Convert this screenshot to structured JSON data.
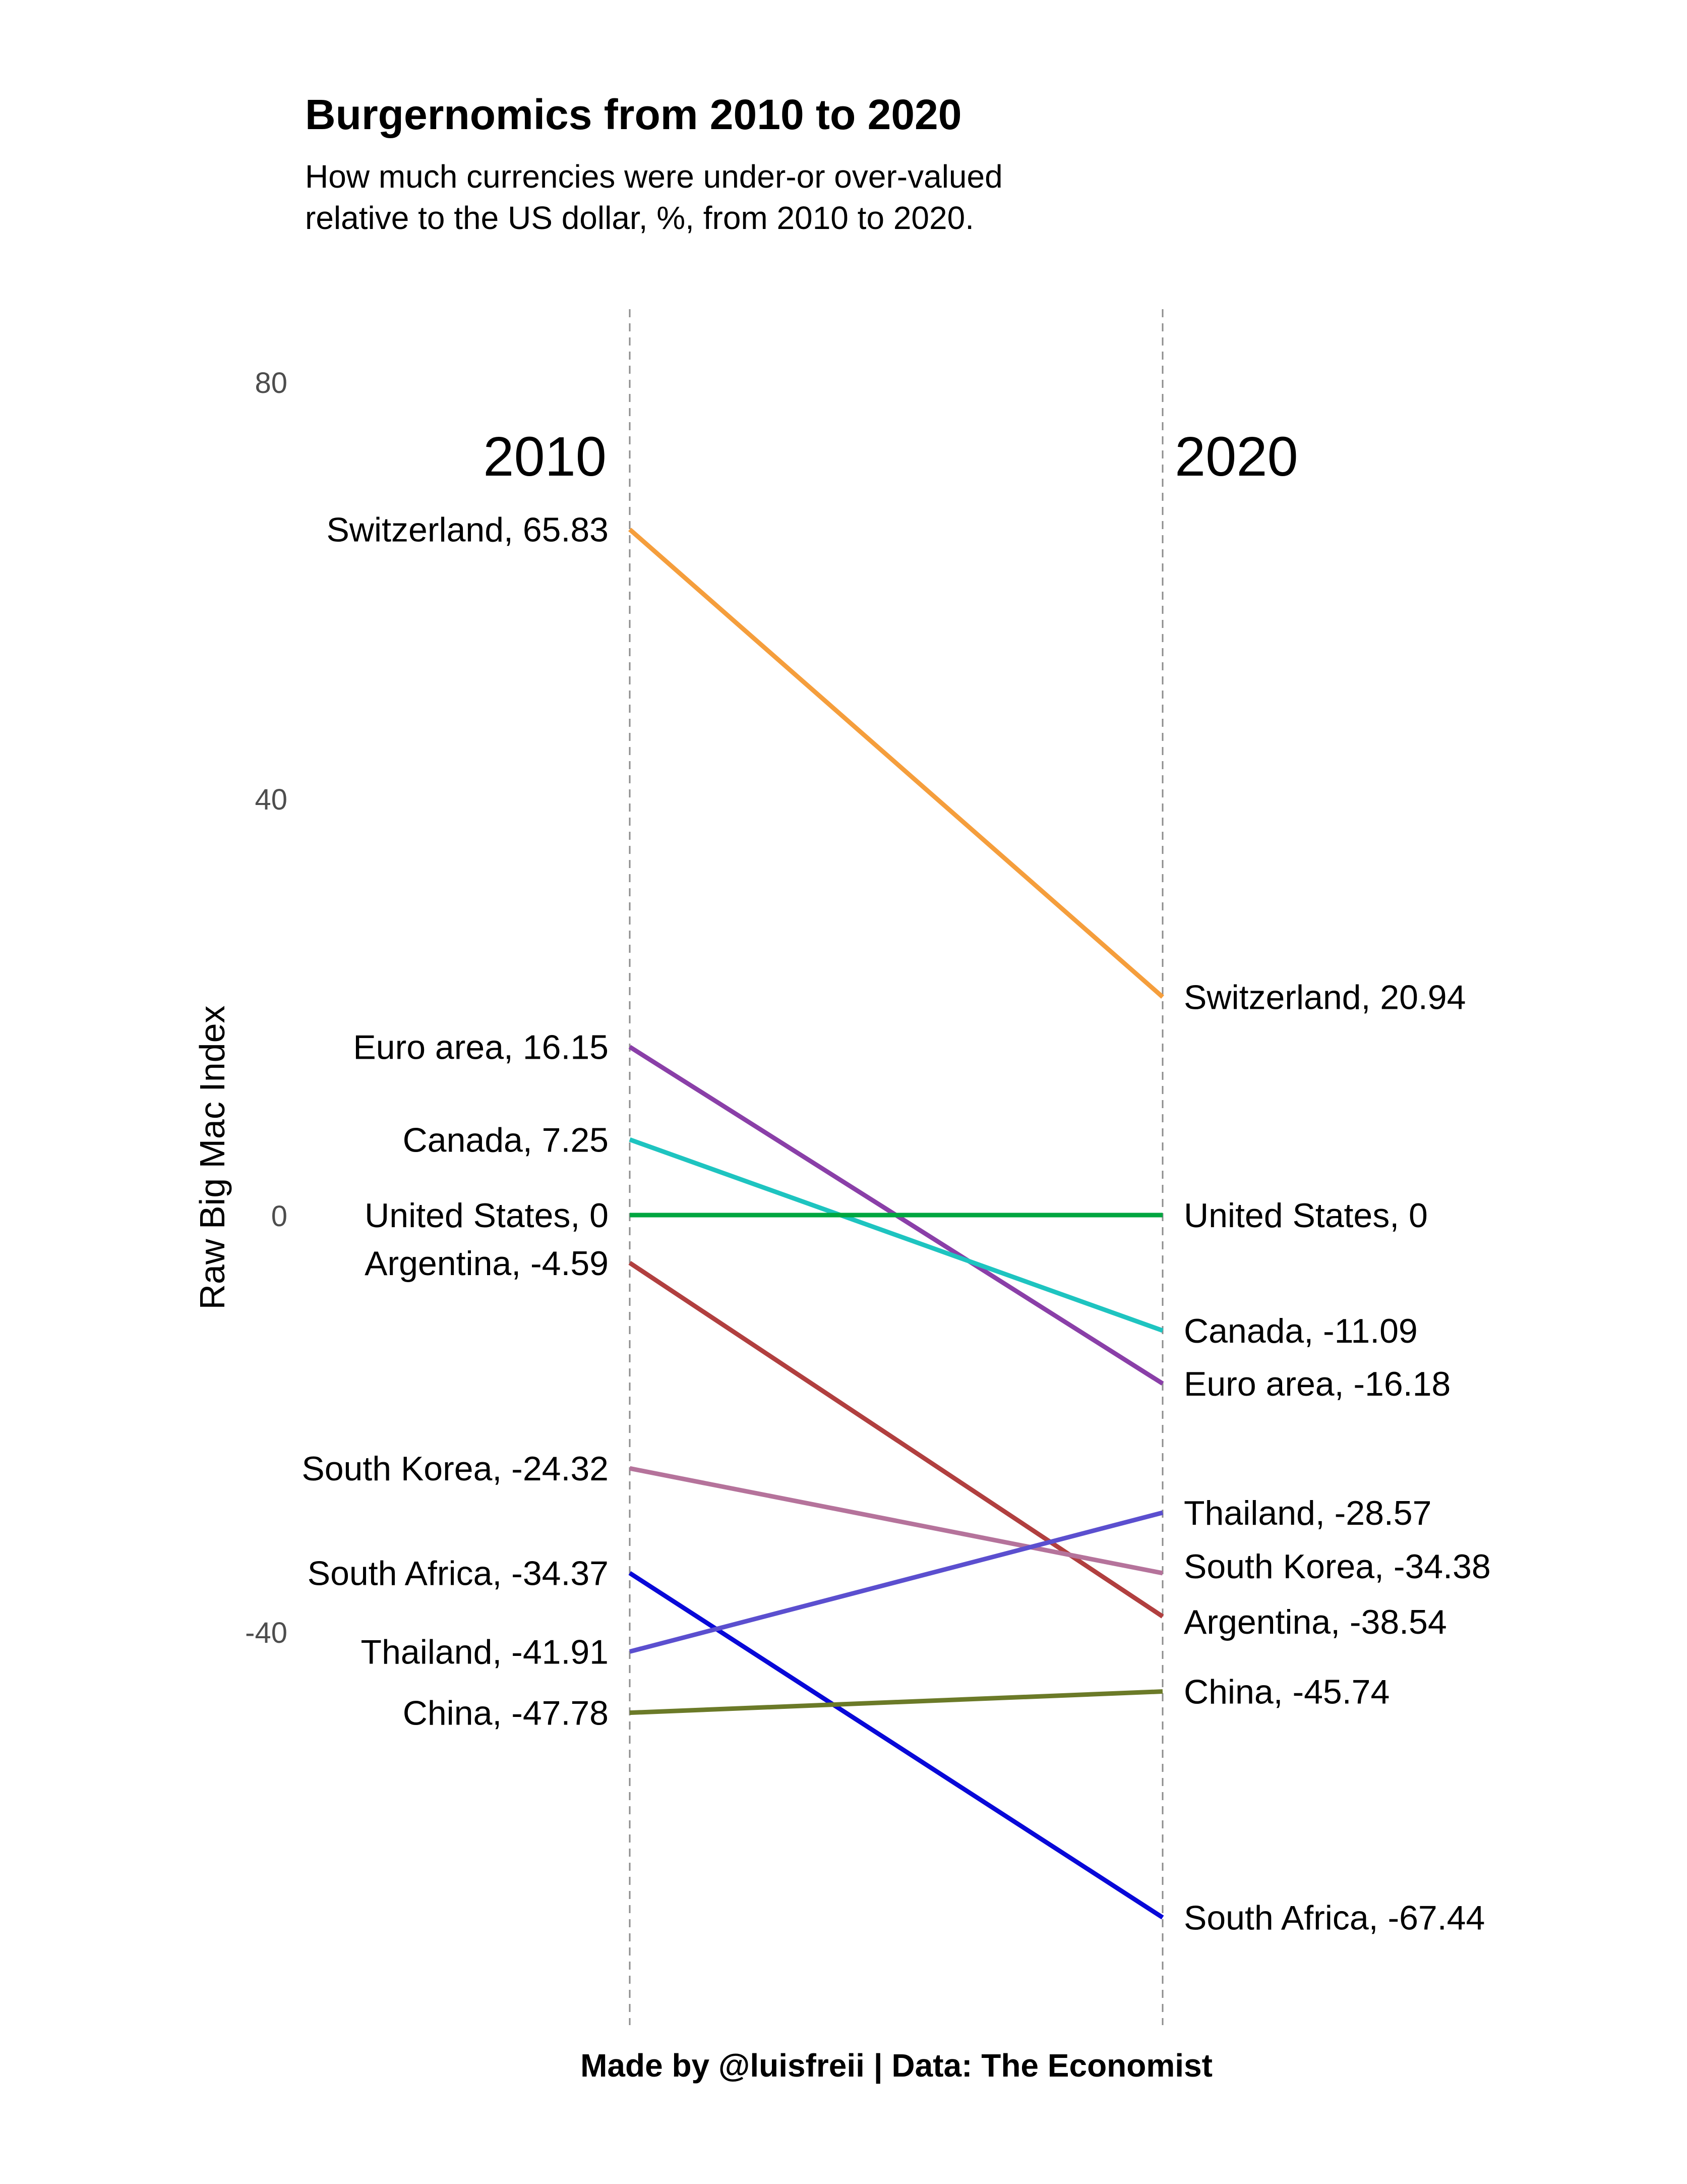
{
  "chart_data": {
    "type": "line",
    "title": "Burgernomics from 2010 to 2020",
    "subtitle_lines": [
      "How much currencies were under-or over-valued",
      "relative to the US dollar, %, from 2010 to 2020."
    ],
    "ylabel": "Raw Big Mac Index",
    "caption": "Made by @luisfreii | Data: The Economist",
    "ylim": [
      -96,
      86
    ],
    "y_ticks": [
      {
        "value": 80,
        "label": "80"
      },
      {
        "value": 40,
        "label": "40"
      },
      {
        "value": 0,
        "label": "0"
      },
      {
        "value": -40,
        "label": "-40"
      }
    ],
    "x": [
      "2010",
      "2020"
    ],
    "grid": "vertical dashed lines at each year",
    "series": [
      {
        "name": "Switzerland",
        "color": "#f59e3c",
        "values": [
          65.83,
          20.94
        ],
        "labels": [
          "Switzerland, 65.83",
          "Switzerland, 20.94"
        ]
      },
      {
        "name": "Euro area",
        "color": "#8a3fa8",
        "values": [
          16.15,
          -16.18
        ],
        "labels": [
          "Euro area, 16.15",
          "Euro area, -16.18"
        ]
      },
      {
        "name": "Canada",
        "color": "#1ec4c0",
        "values": [
          7.25,
          -11.09
        ],
        "labels": [
          "Canada, 7.25",
          "Canada, -11.09"
        ]
      },
      {
        "name": "United States",
        "color": "#00a640",
        "values": [
          0,
          0
        ],
        "labels": [
          "United States, 0",
          "United States, 0"
        ]
      },
      {
        "name": "Argentina",
        "color": "#b13f3f",
        "values": [
          -4.59,
          -38.54
        ],
        "labels": [
          "Argentina, -4.59",
          "Argentina, -38.54"
        ]
      },
      {
        "name": "South Korea",
        "color": "#b5739b",
        "values": [
          -24.32,
          -34.38
        ],
        "labels": [
          "South Korea, -24.32",
          "South Korea, -34.38"
        ]
      },
      {
        "name": "South Africa",
        "color": "#0808d8",
        "values": [
          -34.37,
          -67.44
        ],
        "labels": [
          "South Africa, -34.37",
          "South Africa, -67.44"
        ]
      },
      {
        "name": "Thailand",
        "color": "#5b4fcf",
        "values": [
          -41.91,
          -28.57
        ],
        "labels": [
          "Thailand, -41.91",
          "Thailand, -28.57"
        ]
      },
      {
        "name": "China",
        "color": "#6b7a28",
        "values": [
          -47.78,
          -45.74
        ],
        "labels": [
          "China, -47.78",
          "China, -45.74"
        ]
      }
    ]
  }
}
